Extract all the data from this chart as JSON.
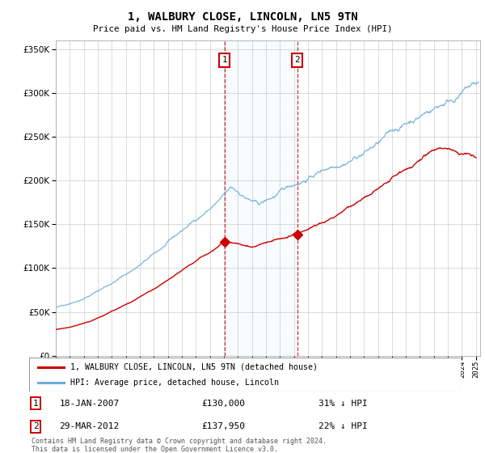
{
  "title": "1, WALBURY CLOSE, LINCOLN, LN5 9TN",
  "subtitle": "Price paid vs. HM Land Registry's House Price Index (HPI)",
  "ylim": [
    0,
    360000
  ],
  "yticks": [
    0,
    50000,
    100000,
    150000,
    200000,
    250000,
    300000,
    350000
  ],
  "sale1_date": "18-JAN-2007",
  "sale1_price": 130000,
  "sale2_date": "29-MAR-2012",
  "sale2_price": 137950,
  "sale1_x": 2007.05,
  "sale2_x": 2012.24,
  "hpi_line_color": "#6baed6",
  "price_line_color": "#cc0000",
  "vline_color": "#cc0000",
  "shade_color": "#ddeeff",
  "legend_label1": "1, WALBURY CLOSE, LINCOLN, LN5 9TN (detached house)",
  "legend_label2": "HPI: Average price, detached house, Lincoln",
  "footer": "Contains HM Land Registry data © Crown copyright and database right 2024.\nThis data is licensed under the Open Government Licence v3.0.",
  "background_color": "#ffffff",
  "grid_color": "#cccccc"
}
